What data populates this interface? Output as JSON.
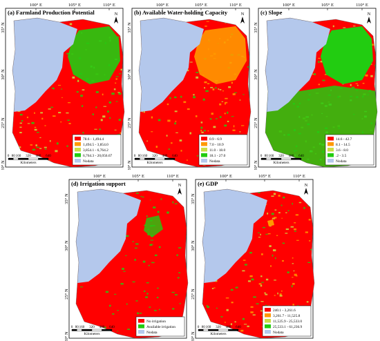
{
  "panels": [
    {
      "id": "a",
      "title": "(a) Farmland Production Potential",
      "lon_ticks": [
        "100° E",
        "105° E",
        "110° E"
      ],
      "lat_ticks": [
        "35° N",
        "30° N",
        "25° N",
        "20° N"
      ],
      "north": "N",
      "scale_ticks": [
        "0",
        "80",
        "160",
        "320",
        "480",
        "640"
      ],
      "scale_unit": "Kilometers",
      "legend": [
        {
          "label": "78.6 - 1,494.4",
          "color": "#ff0000"
        },
        {
          "label": "1,494.5 - 3,854.0",
          "color": "#ff9900"
        },
        {
          "label": "3,854.1 - 6,764.2",
          "color": "#ccdd44"
        },
        {
          "label": "6,764.3 - 20,056.67",
          "color": "#22cc11"
        },
        {
          "label": "Nodata",
          "color": "#b4c8ec"
        }
      ]
    },
    {
      "id": "b",
      "title": "(b) Available Water-holding Capacity",
      "lon_ticks": [
        "100° E",
        "105° E",
        "110° E"
      ],
      "lat_ticks": [
        "35° N",
        "30° N",
        "25° N",
        "20° N"
      ],
      "north": "N",
      "scale_ticks": [
        "0",
        "80",
        "160",
        "320",
        "480",
        "640"
      ],
      "scale_unit": "Kilometers",
      "legend": [
        {
          "label": "0.9 - 6.9",
          "color": "#ff0000"
        },
        {
          "label": "7.0 - 10.9",
          "color": "#ff9900"
        },
        {
          "label": "11.0 - 18.0",
          "color": "#ccdd44"
        },
        {
          "label": "18.1 - 27.0",
          "color": "#22cc11"
        },
        {
          "label": "Nodata",
          "color": "#b4c8ec"
        }
      ]
    },
    {
      "id": "c",
      "title": "(c) Slope",
      "lon_ticks": [
        "100° E",
        "105° E",
        "110° E"
      ],
      "lat_ticks": [
        "35° N",
        "30° N",
        "25° N",
        "20° N"
      ],
      "north": "N",
      "scale_ticks": [
        "0",
        "80",
        "160",
        "320",
        "480",
        "640"
      ],
      "scale_unit": "Kilometers",
      "legend": [
        {
          "label": "14.6 - 42.7",
          "color": "#ff0000"
        },
        {
          "label": "8.1 - 14.5",
          "color": "#ff9900"
        },
        {
          "label": "3.6 - 8.0",
          "color": "#ccdd44"
        },
        {
          "label": ".2 - 3.5",
          "color": "#22cc11"
        },
        {
          "label": "Nodata",
          "color": "#b4c8ec"
        }
      ]
    },
    {
      "id": "d",
      "title": "(d) Irrigation support",
      "lon_ticks": [
        "100° E",
        "105° E",
        "110° E"
      ],
      "lat_ticks": [
        "35° N",
        "30° N",
        "25° N",
        "20° N"
      ],
      "north": "N",
      "scale_ticks": [
        "0",
        "80",
        "160",
        "320",
        "480",
        "640"
      ],
      "scale_unit": "Kilometers",
      "legend": [
        {
          "label": "No irrigation",
          "color": "#ff0000"
        },
        {
          "label": "Available irrigation",
          "color": "#22cc11"
        },
        {
          "label": "Nodata",
          "color": "#b4c8ec"
        }
      ]
    },
    {
      "id": "e",
      "title": "(e) GDP",
      "lon_ticks": [
        "100° E",
        "105° E",
        "110° E"
      ],
      "lat_ticks": [
        "35° N",
        "30° N",
        "25° N",
        "20° N"
      ],
      "north": "N",
      "scale_ticks": [
        "0",
        "80",
        "160",
        "320",
        "480",
        "640"
      ],
      "scale_unit": "Kilometers",
      "legend": [
        {
          "label": "240.1 - 3,261.6",
          "color": "#ff0000"
        },
        {
          "label": "3,261.7 - 11,525.8",
          "color": "#ff9900"
        },
        {
          "label": "11,525.9 - 25,533.0",
          "color": "#ccdd44"
        },
        {
          "label": "25,533.1 - 61,236.9",
          "color": "#22cc11"
        },
        {
          "label": "Nodata",
          "color": "#b4c8ec"
        }
      ]
    }
  ]
}
